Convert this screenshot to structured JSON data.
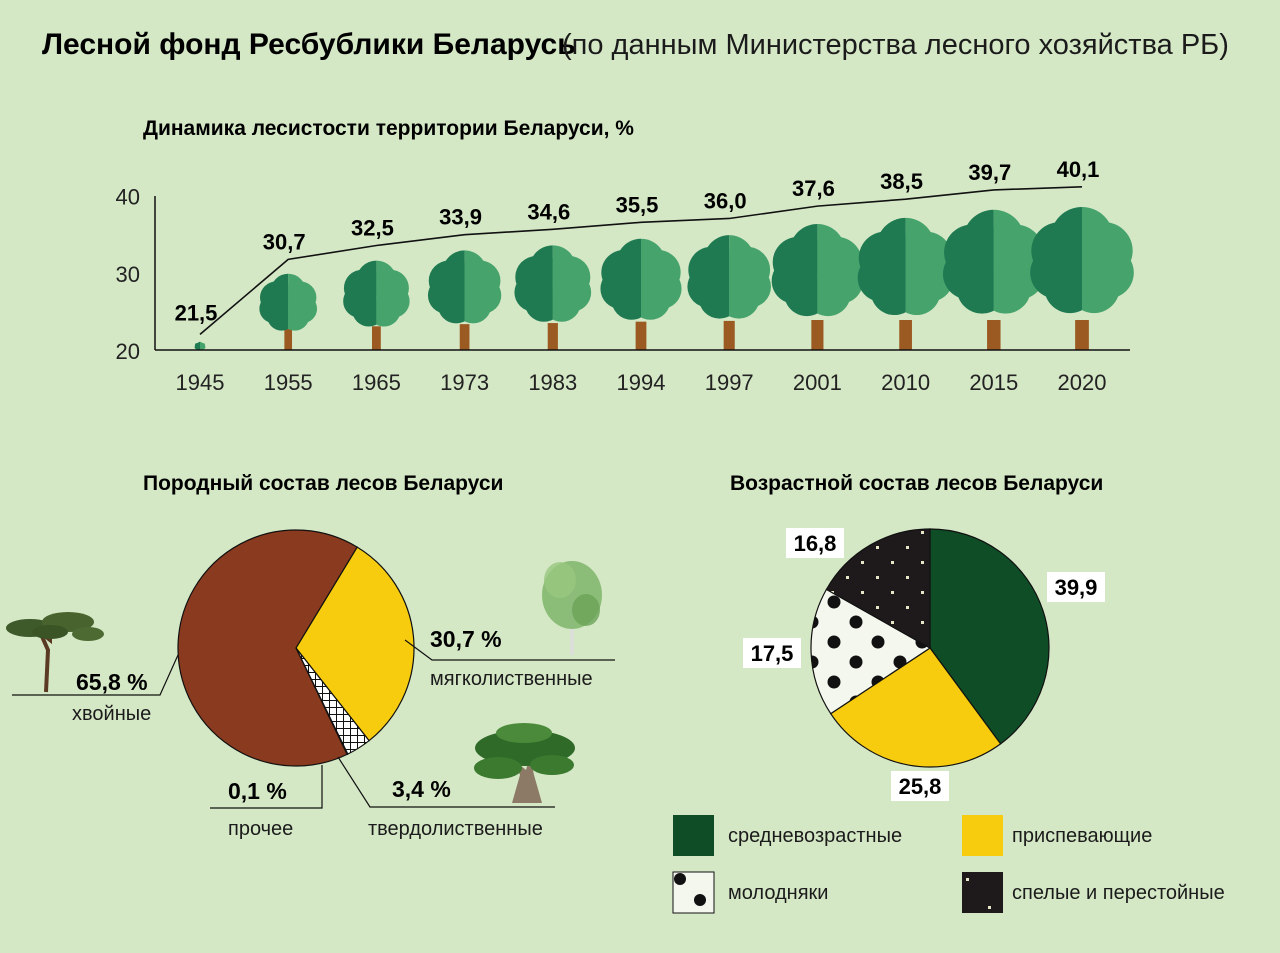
{
  "page": {
    "title_main": "Лесной фонд Ресбублики Беларусь",
    "title_sub": "(по данным Министерства лесного хозяйства РБ)",
    "colors": {
      "background": "#d5e8c6",
      "tree_dark": "#1f7a52",
      "tree_light": "#46a36c",
      "trunk": "#9b5a21",
      "coniferous": "#8a3a1e",
      "softwood": "#f7cc0e",
      "middle_aged": "#0e4d26",
      "maturing": "#f7cc0e",
      "mature": "#1e1a1c"
    }
  },
  "chart_data": [
    {
      "type": "line",
      "title": "Динамика лесистости территории Беларуси, %",
      "categories": [
        "1945",
        "1955",
        "1965",
        "1973",
        "1983",
        "1994",
        "1997",
        "2001",
        "2010",
        "2015",
        "2020"
      ],
      "values": [
        21.5,
        30.7,
        32.5,
        33.9,
        34.6,
        35.5,
        36.0,
        37.6,
        38.5,
        39.7,
        40.1
      ],
      "value_labels": [
        "21,5",
        "30,7",
        "32,5",
        "33,9",
        "34,6",
        "35,5",
        "36,0",
        "37,6",
        "38,5",
        "39,7",
        "40,1"
      ],
      "yticks": [
        "20",
        "30",
        "40"
      ],
      "ylim": [
        20,
        40
      ],
      "marker": "tree-icon"
    },
    {
      "type": "pie",
      "title": "Породный состав лесов Беларуси",
      "slices": [
        {
          "label": "хвойные",
          "value": 65.8,
          "value_label": "65,8 %",
          "color": "#8a3a1e",
          "icon": "pine-tree-icon"
        },
        {
          "label": "мягколиственные",
          "value": 30.7,
          "value_label": "30,7 %",
          "color": "#f7cc0e",
          "icon": "birch-tree-icon"
        },
        {
          "label": "твердолиственные",
          "value": 3.4,
          "value_label": "3,4 %",
          "color": "#ffffff",
          "pattern": "grid",
          "icon": "oak-tree-icon"
        },
        {
          "label": "прочее",
          "value": 0.1,
          "value_label": "0,1 %",
          "color": "#c0392b"
        }
      ]
    },
    {
      "type": "pie",
      "title": "Возрастной состав лесов Беларуси",
      "slices": [
        {
          "label": "средневозрастные",
          "value": 39.9,
          "value_label": "39,9",
          "color": "#0e4d26"
        },
        {
          "label": "приспевающие",
          "value": 25.8,
          "value_label": "25,8",
          "color": "#f7cc0e"
        },
        {
          "label": "молодняки",
          "value": 17.5,
          "value_label": "17,5",
          "color": "#f4f7ee",
          "pattern": "dots"
        },
        {
          "label": "спелые и перестойные",
          "value": 16.8,
          "value_label": "16,8",
          "color": "#1e1a1c",
          "pattern": "specks"
        }
      ],
      "legend": [
        "средневозрастные",
        "приспевающие",
        "молодняки",
        "спелые и перестойные"
      ]
    }
  ]
}
